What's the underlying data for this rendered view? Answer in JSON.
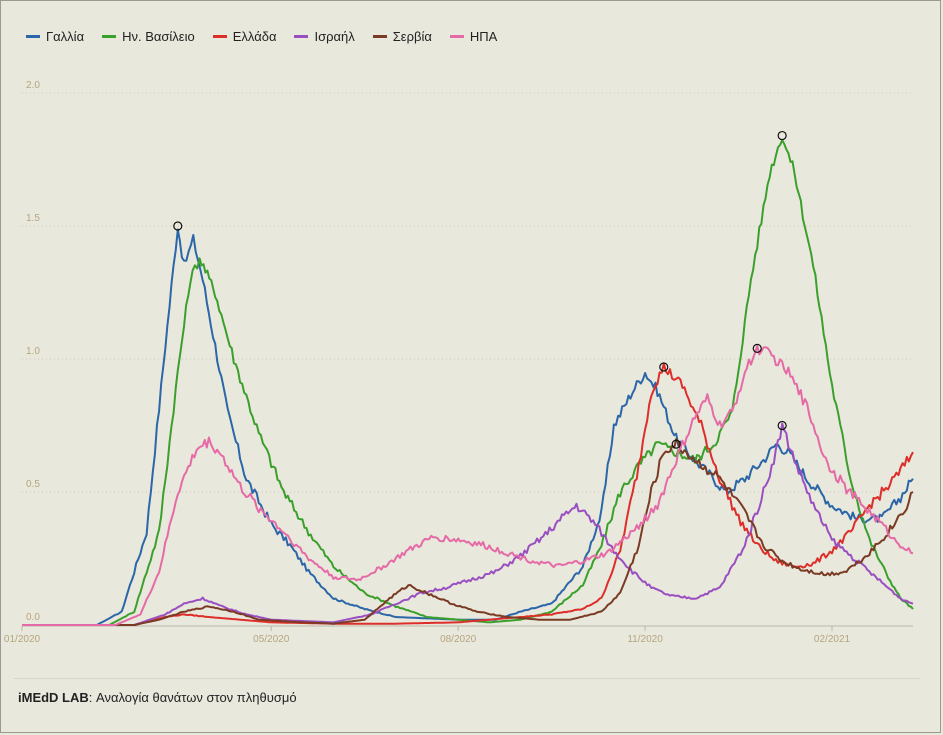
{
  "legend": [
    {
      "label": "Γαλλία",
      "color": "#2b66a8"
    },
    {
      "label": "Ην. Βασίλειο",
      "color": "#3aa02b"
    },
    {
      "label": "Ελλάδα",
      "color": "#dd2e2a"
    },
    {
      "label": "Ισραήλ",
      "color": "#9a4fc1"
    },
    {
      "label": "Σερβία",
      "color": "#7a3a23"
    },
    {
      "label": "ΗΠΑ",
      "color": "#e56aa6"
    }
  ],
  "caption": {
    "brand": "iMEdD LAB",
    "text": ": Αναλογία θανάτων στον πληθυσμό"
  },
  "chart_data": {
    "type": "line",
    "title": "",
    "xlabel": "",
    "ylabel": "",
    "x_unit": "months since 2020-01-01",
    "xlim": [
      0,
      14.3
    ],
    "ylim": [
      0,
      2.0
    ],
    "y_ticks": [
      0.0,
      0.5,
      1.0,
      1.5,
      2.0
    ],
    "y_tick_labels": [
      "0.0",
      "0.5",
      "1.0",
      "1.5",
      "2.0"
    ],
    "x_ticks": [
      0,
      4,
      7,
      10,
      13
    ],
    "x_tick_labels": [
      "01/2020",
      "05/2020",
      "08/2020",
      "11/2020",
      "02/2021"
    ],
    "grid": "horizontal dotted",
    "legend_position": "top-left",
    "series": [
      {
        "name": "Γαλλία",
        "color": "#2b66a8",
        "points": [
          [
            0,
            0
          ],
          [
            1.2,
            0
          ],
          [
            1.6,
            0.05
          ],
          [
            2.0,
            0.35
          ],
          [
            2.3,
            1.05
          ],
          [
            2.5,
            1.5
          ],
          [
            2.6,
            1.35
          ],
          [
            2.75,
            1.45
          ],
          [
            2.9,
            1.3
          ],
          [
            3.1,
            1.05
          ],
          [
            3.3,
            0.8
          ],
          [
            3.6,
            0.55
          ],
          [
            4.0,
            0.38
          ],
          [
            4.3,
            0.3
          ],
          [
            4.6,
            0.2
          ],
          [
            5.0,
            0.1
          ],
          [
            5.5,
            0.06
          ],
          [
            6.0,
            0.03
          ],
          [
            7.0,
            0.02
          ],
          [
            7.6,
            0.02
          ],
          [
            8.0,
            0.05
          ],
          [
            8.5,
            0.08
          ],
          [
            9.0,
            0.22
          ],
          [
            9.3,
            0.42
          ],
          [
            9.5,
            0.75
          ],
          [
            9.8,
            0.88
          ],
          [
            10.0,
            0.95
          ],
          [
            10.2,
            0.88
          ],
          [
            10.5,
            0.7
          ],
          [
            10.8,
            0.62
          ],
          [
            11.1,
            0.55
          ],
          [
            11.3,
            0.5
          ],
          [
            11.6,
            0.55
          ],
          [
            11.9,
            0.62
          ],
          [
            12.1,
            0.68
          ],
          [
            12.3,
            0.65
          ],
          [
            12.6,
            0.55
          ],
          [
            13.0,
            0.45
          ],
          [
            13.4,
            0.4
          ],
          [
            13.8,
            0.4
          ],
          [
            14.1,
            0.48
          ],
          [
            14.3,
            0.55
          ]
        ]
      },
      {
        "name": "Ην. Βασίλειο",
        "color": "#3aa02b",
        "points": [
          [
            0,
            0
          ],
          [
            1.4,
            0
          ],
          [
            1.8,
            0.05
          ],
          [
            2.2,
            0.35
          ],
          [
            2.5,
            0.95
          ],
          [
            2.7,
            1.3
          ],
          [
            2.85,
            1.38
          ],
          [
            3.1,
            1.25
          ],
          [
            3.4,
            1.0
          ],
          [
            3.8,
            0.72
          ],
          [
            4.2,
            0.5
          ],
          [
            4.6,
            0.35
          ],
          [
            5.0,
            0.22
          ],
          [
            5.5,
            0.12
          ],
          [
            6.0,
            0.07
          ],
          [
            6.5,
            0.03
          ],
          [
            7.0,
            0.02
          ],
          [
            7.5,
            0.01
          ],
          [
            8.0,
            0.02
          ],
          [
            8.5,
            0.05
          ],
          [
            9.0,
            0.15
          ],
          [
            9.3,
            0.3
          ],
          [
            9.6,
            0.5
          ],
          [
            9.9,
            0.6
          ],
          [
            10.2,
            0.68
          ],
          [
            10.5,
            0.65
          ],
          [
            10.8,
            0.62
          ],
          [
            11.1,
            0.68
          ],
          [
            11.4,
            0.8
          ],
          [
            11.7,
            1.3
          ],
          [
            12.0,
            1.7
          ],
          [
            12.2,
            1.84
          ],
          [
            12.4,
            1.7
          ],
          [
            12.7,
            1.35
          ],
          [
            13.0,
            0.9
          ],
          [
            13.3,
            0.55
          ],
          [
            13.6,
            0.32
          ],
          [
            13.9,
            0.18
          ],
          [
            14.1,
            0.1
          ],
          [
            14.3,
            0.06
          ]
        ]
      },
      {
        "name": "Ελλάδα",
        "color": "#dd2e2a",
        "points": [
          [
            0,
            0
          ],
          [
            1.8,
            0
          ],
          [
            2.3,
            0.03
          ],
          [
            2.6,
            0.04
          ],
          [
            3.0,
            0.03
          ],
          [
            3.5,
            0.02
          ],
          [
            4.0,
            0.01
          ],
          [
            5.0,
            0.005
          ],
          [
            6.0,
            0.005
          ],
          [
            7.0,
            0.01
          ],
          [
            7.5,
            0.02
          ],
          [
            8.0,
            0.03
          ],
          [
            8.5,
            0.04
          ],
          [
            9.0,
            0.06
          ],
          [
            9.3,
            0.1
          ],
          [
            9.6,
            0.28
          ],
          [
            9.9,
            0.6
          ],
          [
            10.1,
            0.88
          ],
          [
            10.3,
            0.97
          ],
          [
            10.6,
            0.9
          ],
          [
            10.9,
            0.75
          ],
          [
            11.2,
            0.55
          ],
          [
            11.5,
            0.4
          ],
          [
            11.8,
            0.3
          ],
          [
            12.1,
            0.24
          ],
          [
            12.4,
            0.22
          ],
          [
            12.7,
            0.23
          ],
          [
            13.0,
            0.28
          ],
          [
            13.3,
            0.35
          ],
          [
            13.6,
            0.45
          ],
          [
            13.9,
            0.52
          ],
          [
            14.1,
            0.58
          ],
          [
            14.3,
            0.65
          ]
        ]
      },
      {
        "name": "Ισραήλ",
        "color": "#9a4fc1",
        "points": [
          [
            0,
            0
          ],
          [
            1.8,
            0
          ],
          [
            2.3,
            0.04
          ],
          [
            2.6,
            0.08
          ],
          [
            2.9,
            0.1
          ],
          [
            3.2,
            0.07
          ],
          [
            3.6,
            0.04
          ],
          [
            4.0,
            0.02
          ],
          [
            5.0,
            0.01
          ],
          [
            5.6,
            0.04
          ],
          [
            6.0,
            0.08
          ],
          [
            6.4,
            0.12
          ],
          [
            6.8,
            0.14
          ],
          [
            7.2,
            0.17
          ],
          [
            7.6,
            0.2
          ],
          [
            8.0,
            0.26
          ],
          [
            8.4,
            0.34
          ],
          [
            8.7,
            0.41
          ],
          [
            8.9,
            0.45
          ],
          [
            9.2,
            0.38
          ],
          [
            9.5,
            0.28
          ],
          [
            9.8,
            0.2
          ],
          [
            10.1,
            0.14
          ],
          [
            10.4,
            0.11
          ],
          [
            10.8,
            0.1
          ],
          [
            11.2,
            0.14
          ],
          [
            11.6,
            0.3
          ],
          [
            11.9,
            0.5
          ],
          [
            12.1,
            0.65
          ],
          [
            12.2,
            0.75
          ],
          [
            12.4,
            0.62
          ],
          [
            12.7,
            0.45
          ],
          [
            13.0,
            0.32
          ],
          [
            13.3,
            0.26
          ],
          [
            13.6,
            0.2
          ],
          [
            13.9,
            0.14
          ],
          [
            14.1,
            0.1
          ],
          [
            14.3,
            0.08
          ]
        ]
      },
      {
        "name": "Σερβία",
        "color": "#7a3a23",
        "points": [
          [
            0,
            0
          ],
          [
            1.8,
            0
          ],
          [
            2.2,
            0.02
          ],
          [
            2.6,
            0.05
          ],
          [
            3.0,
            0.07
          ],
          [
            3.4,
            0.05
          ],
          [
            3.8,
            0.02
          ],
          [
            4.5,
            0.01
          ],
          [
            5.0,
            0.005
          ],
          [
            5.5,
            0.02
          ],
          [
            5.9,
            0.1
          ],
          [
            6.2,
            0.15
          ],
          [
            6.5,
            0.12
          ],
          [
            6.9,
            0.08
          ],
          [
            7.3,
            0.05
          ],
          [
            7.8,
            0.03
          ],
          [
            8.3,
            0.02
          ],
          [
            8.8,
            0.02
          ],
          [
            9.3,
            0.05
          ],
          [
            9.6,
            0.12
          ],
          [
            9.9,
            0.3
          ],
          [
            10.1,
            0.5
          ],
          [
            10.3,
            0.65
          ],
          [
            10.5,
            0.68
          ],
          [
            10.8,
            0.62
          ],
          [
            11.2,
            0.55
          ],
          [
            11.6,
            0.42
          ],
          [
            11.9,
            0.3
          ],
          [
            12.2,
            0.24
          ],
          [
            12.5,
            0.21
          ],
          [
            12.9,
            0.19
          ],
          [
            13.2,
            0.2
          ],
          [
            13.5,
            0.25
          ],
          [
            13.8,
            0.32
          ],
          [
            14.0,
            0.38
          ],
          [
            14.2,
            0.45
          ],
          [
            14.3,
            0.5
          ]
        ]
      },
      {
        "name": "ΗΠΑ",
        "color": "#e56aa6",
        "points": [
          [
            0,
            0
          ],
          [
            1.5,
            0
          ],
          [
            1.9,
            0.04
          ],
          [
            2.2,
            0.2
          ],
          [
            2.5,
            0.5
          ],
          [
            2.8,
            0.66
          ],
          [
            3.0,
            0.69
          ],
          [
            3.2,
            0.64
          ],
          [
            3.5,
            0.52
          ],
          [
            3.8,
            0.44
          ],
          [
            4.2,
            0.35
          ],
          [
            4.6,
            0.25
          ],
          [
            5.0,
            0.18
          ],
          [
            5.4,
            0.17
          ],
          [
            5.8,
            0.22
          ],
          [
            6.2,
            0.28
          ],
          [
            6.6,
            0.33
          ],
          [
            7.0,
            0.32
          ],
          [
            7.4,
            0.3
          ],
          [
            7.8,
            0.27
          ],
          [
            8.2,
            0.24
          ],
          [
            8.6,
            0.22
          ],
          [
            9.0,
            0.24
          ],
          [
            9.4,
            0.27
          ],
          [
            9.8,
            0.35
          ],
          [
            10.2,
            0.45
          ],
          [
            10.5,
            0.62
          ],
          [
            10.8,
            0.78
          ],
          [
            11.0,
            0.85
          ],
          [
            11.2,
            0.75
          ],
          [
            11.4,
            0.8
          ],
          [
            11.6,
            0.95
          ],
          [
            11.8,
            1.04
          ],
          [
            12.0,
            1.02
          ],
          [
            12.3,
            0.95
          ],
          [
            12.6,
            0.82
          ],
          [
            12.9,
            0.62
          ],
          [
            13.2,
            0.52
          ],
          [
            13.5,
            0.45
          ],
          [
            13.8,
            0.38
          ],
          [
            14.0,
            0.32
          ],
          [
            14.3,
            0.27
          ]
        ]
      }
    ],
    "peak_markers": [
      {
        "series": "Γαλλία",
        "x": 2.5,
        "y": 1.5
      },
      {
        "series": "Ην. Βασίλειο",
        "x": 12.2,
        "y": 1.84
      },
      {
        "series": "Ελλάδα",
        "x": 10.3,
        "y": 0.97
      },
      {
        "series": "ΗΠΑ",
        "x": 11.8,
        "y": 1.04
      },
      {
        "series": "Ισραήλ",
        "x": 12.2,
        "y": 0.75
      },
      {
        "series": "Σερβία",
        "x": 10.5,
        "y": 0.68
      }
    ]
  }
}
